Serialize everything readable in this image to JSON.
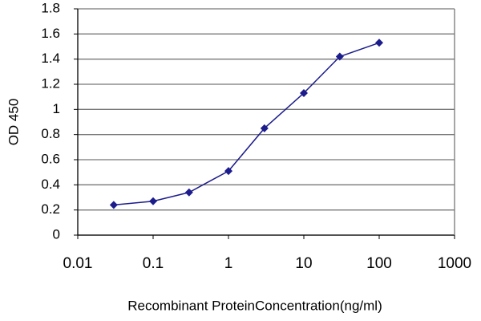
{
  "chart_data": {
    "type": "line",
    "xlabel": "Recombinant ProteinConcentration(ng/ml)",
    "ylabel": "OD 450",
    "x": [
      0.03,
      0.1,
      0.3,
      1,
      3,
      10,
      30,
      100
    ],
    "values": [
      0.24,
      0.27,
      0.34,
      0.51,
      0.85,
      1.13,
      1.42,
      1.53
    ],
    "color": "#1c1c8c",
    "xlim": [
      0.01,
      1000
    ],
    "xticks": [
      0.01,
      0.1,
      1,
      10,
      100,
      1000
    ],
    "xscale": "log",
    "ylim": [
      0,
      1.8
    ],
    "yticks": [
      0,
      0.2,
      0.4,
      0.6,
      0.8,
      1,
      1.2,
      1.4,
      1.6,
      1.8
    ],
    "grid": true
  }
}
